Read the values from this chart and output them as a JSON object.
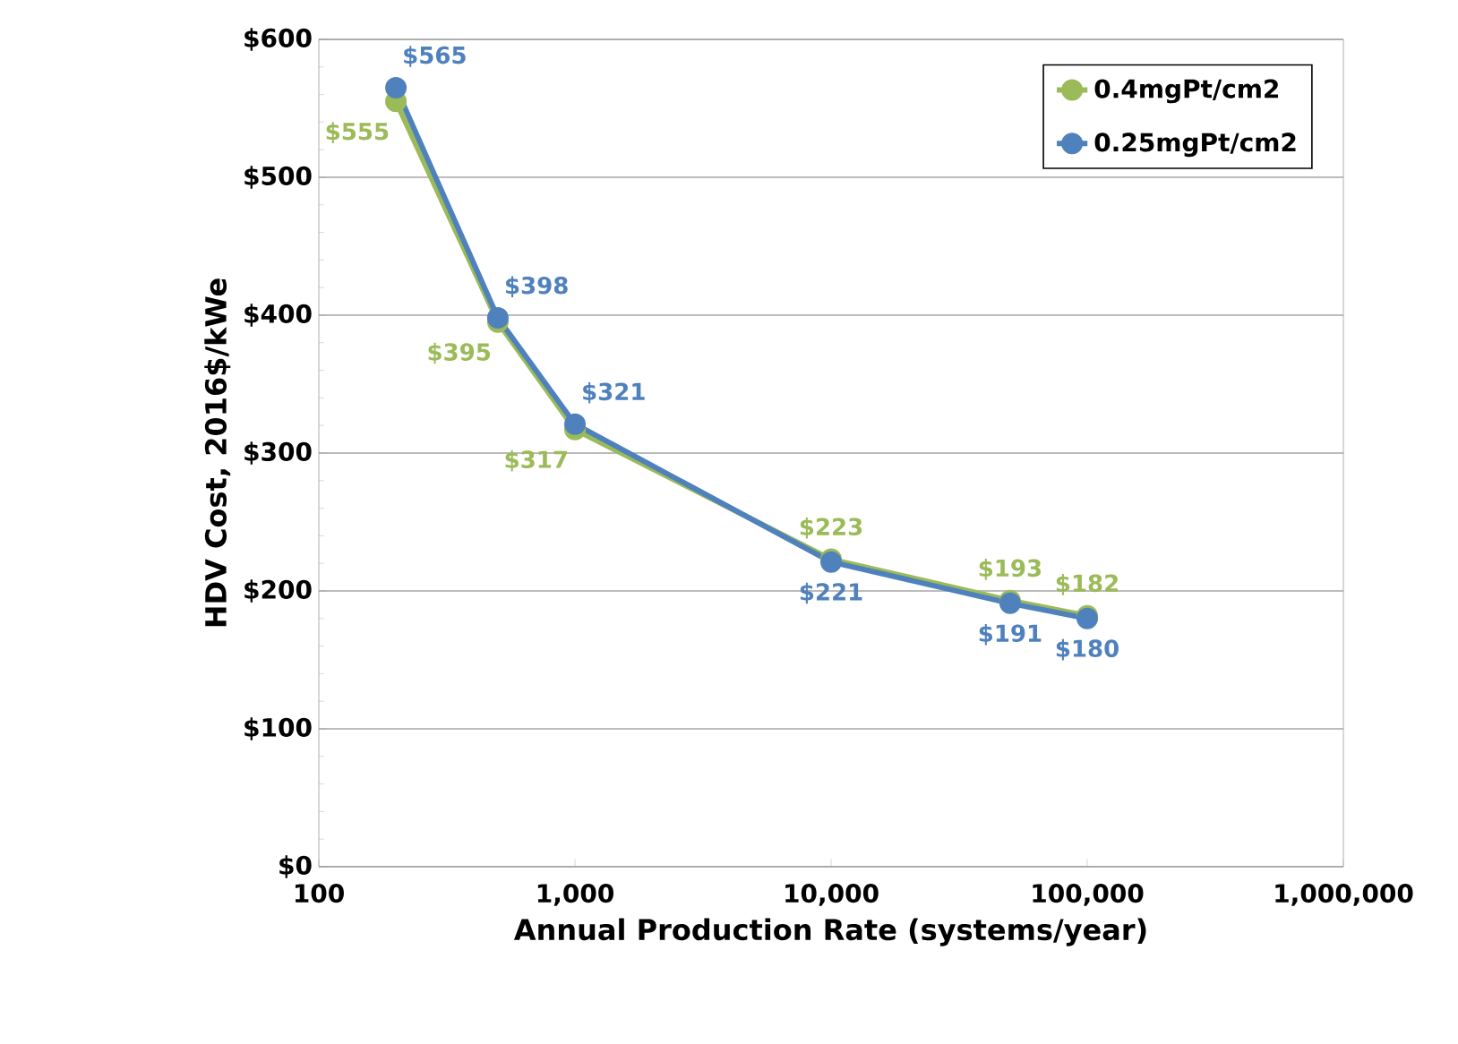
{
  "chart_data": {
    "type": "line",
    "xlabel": "Annual Production Rate (systems/year)",
    "ylabel": "HDV Cost, 2016$/kWe",
    "log": "x",
    "x": [
      200,
      500,
      1000,
      10000,
      50000,
      100000
    ],
    "series": [
      {
        "name": "0.4mgPt/cm2",
        "color": "#9bbb59",
        "values": [
          555,
          395,
          317,
          223,
          193,
          182
        ],
        "value_labels": [
          "$555",
          "$395",
          "$317",
          "$223",
          "$193",
          "$182"
        ]
      },
      {
        "name": "0.25mgPt/cm2",
        "color": "#4f81bd",
        "values": [
          565,
          398,
          321,
          221,
          191,
          180
        ],
        "value_labels": [
          "$565",
          "$398",
          "$321",
          "$221",
          "$191",
          "$180"
        ]
      }
    ],
    "xlim": [
      100,
      1000000
    ],
    "xticks": [
      100,
      {
        "value": 1000,
        "label": "1,000"
      },
      {
        "value": 10000,
        "label": "10,000"
      },
      {
        "value": 100000,
        "label": "100,000"
      },
      {
        "value": 1000000,
        "label": "1,000,000"
      }
    ],
    "ylim": [
      0,
      600
    ],
    "yticks": [
      {
        "value": 0,
        "label": "$0"
      },
      {
        "value": 100,
        "label": "$100"
      },
      {
        "value": 200,
        "label": "$200"
      },
      {
        "value": 300,
        "label": "$300"
      },
      {
        "value": 400,
        "label": "$400"
      },
      {
        "value": 500,
        "label": "$500"
      },
      {
        "value": 600,
        "label": "$600"
      }
    ],
    "grid": "y",
    "legend": "top right",
    "marker": "circle",
    "line_style": "solid"
  }
}
